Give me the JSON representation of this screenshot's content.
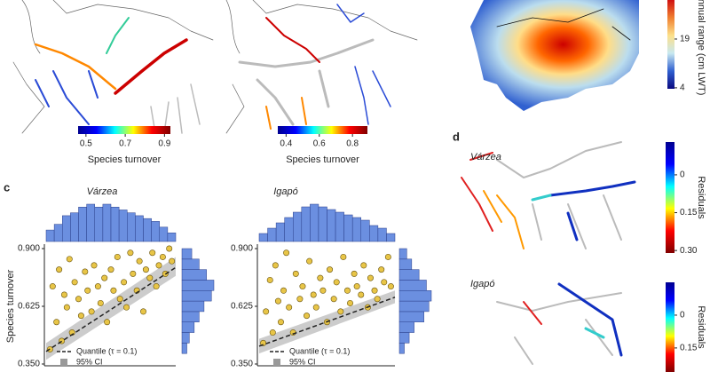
{
  "chart_data": [
    {
      "type": "colorbar",
      "orientation": "horizontal",
      "label": "Species turnover",
      "lim": [
        0.46,
        0.93
      ],
      "ticks": [
        0.5,
        0.7,
        0.9
      ],
      "colormap": [
        "#00008f",
        "#0000ff",
        "#00ffff",
        "#ffff00",
        "#ff0000",
        "#800000"
      ]
    },
    {
      "type": "colorbar",
      "orientation": "horizontal",
      "label": "Species turnover",
      "lim": [
        0.35,
        0.89
      ],
      "ticks": [
        0.4,
        0.6,
        0.8
      ],
      "colormap": [
        "#00008f",
        "#0000ff",
        "#00ffff",
        "#ffff00",
        "#ff0000",
        "#800000"
      ]
    },
    {
      "type": "colorbar",
      "orientation": "up",
      "label": "annual range (cm LWT)",
      "lim": [
        3.7,
        31
      ],
      "ticks": [
        4,
        19
      ],
      "colormap": [
        "#0a0a80",
        "#3060d0",
        "#c8e8f0",
        "#fce08a",
        "#f08030",
        "#d01010"
      ]
    },
    {
      "type": "scatter",
      "panel_label": "c",
      "title": "Várzea",
      "ylabel": "Species turnover",
      "color": "#e8c547",
      "hist_color": "#6b8fe0",
      "xlim": [
        0,
        1
      ],
      "ylim": [
        0.35,
        0.9
      ],
      "yticks": [
        {
          "value": 0.35,
          "label": "0.350"
        },
        0.625,
        {
          "value": 0.9,
          "label": "0.900"
        }
      ],
      "x": [
        0.03,
        0.05,
        0.08,
        0.1,
        0.12,
        0.14,
        0.16,
        0.18,
        0.2,
        0.22,
        0.25,
        0.27,
        0.3,
        0.32,
        0.35,
        0.37,
        0.4,
        0.42,
        0.45,
        0.47,
        0.5,
        0.52,
        0.55,
        0.57,
        0.6,
        0.62,
        0.65,
        0.67,
        0.7,
        0.72,
        0.75,
        0.77,
        0.8,
        0.82,
        0.85,
        0.87,
        0.9,
        0.92,
        0.95,
        0.97
      ],
      "y": [
        0.42,
        0.72,
        0.55,
        0.8,
        0.46,
        0.68,
        0.62,
        0.85,
        0.5,
        0.74,
        0.66,
        0.58,
        0.79,
        0.7,
        0.6,
        0.82,
        0.72,
        0.64,
        0.76,
        0.55,
        0.8,
        0.7,
        0.86,
        0.66,
        0.74,
        0.62,
        0.88,
        0.78,
        0.7,
        0.84,
        0.6,
        0.8,
        0.76,
        0.88,
        0.72,
        0.82,
        0.86,
        0.78,
        0.9,
        0.84
      ],
      "quantile": {
        "name": "Quantile (τ = 0.1)",
        "x": [
          0,
          1
        ],
        "y": [
          0.41,
          0.81
        ]
      },
      "ci": {
        "name": "95% CI",
        "x": [
          0,
          1
        ],
        "lower": [
          0.37,
          0.77
        ],
        "upper": [
          0.45,
          0.86
        ]
      },
      "hist_x": {
        "bins": [
          0,
          0.0625,
          0.125,
          0.1875,
          0.25,
          0.3125,
          0.375,
          0.4375,
          0.5,
          0.5625,
          0.625,
          0.6875,
          0.75,
          0.8125,
          0.875,
          0.9375,
          1
        ],
        "counts": [
          4,
          6,
          9,
          10,
          12,
          13,
          12,
          13,
          12,
          11,
          10,
          9,
          8,
          7,
          5,
          3
        ]
      },
      "hist_y": {
        "bins": [
          0.4,
          0.45,
          0.5,
          0.55,
          0.6,
          0.65,
          0.7,
          0.75,
          0.8,
          0.85,
          0.9
        ],
        "counts": [
          2,
          3,
          5,
          7,
          9,
          12,
          13,
          10,
          7,
          4
        ]
      }
    },
    {
      "type": "scatter",
      "title": "Igapó",
      "color": "#e8c547",
      "hist_color": "#6b8fe0",
      "xlim": [
        0,
        1
      ],
      "ylim": [
        0.35,
        0.9
      ],
      "yticks": [
        {
          "value": 0.35,
          "label": "0.350"
        },
        0.625,
        {
          "value": 0.9,
          "label": "0.900"
        }
      ],
      "x": [
        0.03,
        0.05,
        0.08,
        0.1,
        0.12,
        0.14,
        0.16,
        0.18,
        0.2,
        0.22,
        0.25,
        0.27,
        0.3,
        0.32,
        0.35,
        0.37,
        0.4,
        0.42,
        0.45,
        0.47,
        0.5,
        0.52,
        0.55,
        0.57,
        0.6,
        0.62,
        0.65,
        0.67,
        0.7,
        0.72,
        0.75,
        0.77,
        0.8,
        0.82,
        0.85,
        0.87,
        0.9,
        0.92,
        0.95,
        0.97
      ],
      "y": [
        0.45,
        0.6,
        0.75,
        0.5,
        0.82,
        0.65,
        0.55,
        0.7,
        0.88,
        0.62,
        0.5,
        0.78,
        0.66,
        0.72,
        0.58,
        0.84,
        0.68,
        0.62,
        0.76,
        0.7,
        0.55,
        0.8,
        0.66,
        0.74,
        0.6,
        0.86,
        0.7,
        0.64,
        0.78,
        0.72,
        0.68,
        0.82,
        0.62,
        0.76,
        0.7,
        0.66,
        0.8,
        0.74,
        0.86,
        0.72
      ],
      "quantile": {
        "name": "Quantile (τ = 0.1)",
        "x": [
          0,
          1
        ],
        "y": [
          0.435,
          0.668
        ]
      },
      "ci": {
        "name": "95% CI",
        "x": [
          0,
          1
        ],
        "lower": [
          0.4,
          0.64
        ],
        "upper": [
          0.47,
          0.7
        ]
      },
      "hist_x": {
        "bins": [
          0,
          0.0625,
          0.125,
          0.1875,
          0.25,
          0.3125,
          0.375,
          0.4375,
          0.5,
          0.5625,
          0.625,
          0.6875,
          0.75,
          0.8125,
          0.875,
          0.9375,
          1
        ],
        "counts": [
          3,
          5,
          7,
          9,
          11,
          13,
          14,
          13,
          12,
          11,
          10,
          9,
          8,
          6,
          5,
          3
        ]
      },
      "hist_y": {
        "bins": [
          0.4,
          0.45,
          0.5,
          0.55,
          0.6,
          0.65,
          0.7,
          0.75,
          0.8,
          0.85,
          0.9
        ],
        "counts": [
          2,
          4,
          6,
          10,
          12,
          13,
          11,
          8,
          5,
          3
        ]
      }
    },
    {
      "type": "map",
      "panel_label": "d",
      "titles": [
        "Várzea",
        "Igapó"
      ],
      "colorbars": [
        {
          "label": "Residuals",
          "lim": [
            -0.13,
            0.31
          ],
          "ticks": [
            0,
            0.15,
            {
              "value": 0.3,
              "label": "0.30"
            }
          ]
        },
        {
          "label": "Residuals",
          "lim": [
            -0.15,
            0.26
          ],
          "ticks": [
            0,
            0.15
          ]
        }
      ],
      "colormap": [
        "#00008f",
        "#0000ff",
        "#00ffff",
        "#ffff00",
        "#ff0000",
        "#800000"
      ]
    }
  ]
}
